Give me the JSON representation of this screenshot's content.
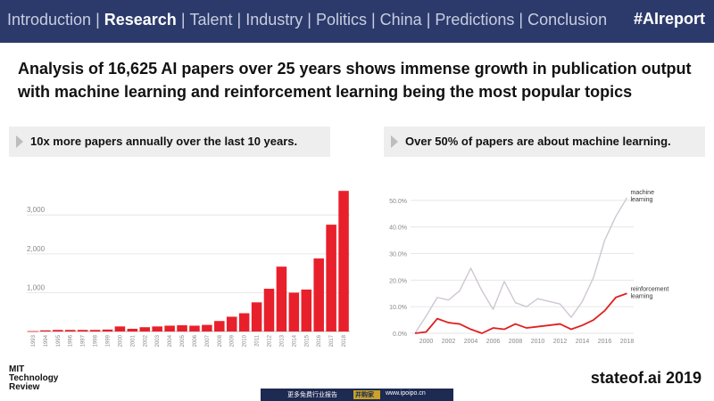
{
  "nav": {
    "items": [
      {
        "label": "Introduction",
        "active": false
      },
      {
        "label": "Research",
        "active": true
      },
      {
        "label": "Talent",
        "active": false
      },
      {
        "label": "Industry",
        "active": false
      },
      {
        "label": "Politics",
        "active": false
      },
      {
        "label": "China",
        "active": false
      },
      {
        "label": "Predictions",
        "active": false
      },
      {
        "label": "Conclusion",
        "active": false
      }
    ],
    "separator": "|",
    "hashtag": "#AIreport"
  },
  "headline": "Analysis of 16,625 AI papers over 25 years shows immense growth in publication output with machine learning and reinforcement learning being the most popular topics",
  "left_section": {
    "subtitle": "10x more papers annually over the last 10 years."
  },
  "right_section": {
    "subtitle": "Over 50% of papers are about machine learning."
  },
  "footer": {
    "logo_lines": [
      "MIT",
      "Technology",
      "Review"
    ],
    "site": "stateof.ai 2019",
    "banner_text": "更多免费行业报告",
    "banner_button": "并购家",
    "banner_url": "www.ipoipo.cn"
  },
  "colors": {
    "nav_bg": "#2c3a6b",
    "bar": "#e8202b",
    "ml_line": "#cfc6d2",
    "rl_line": "#e02020",
    "banner_bg": "#1d2a52"
  },
  "chart_data": [
    {
      "type": "bar",
      "categories": [
        "1993",
        "1994",
        "1995",
        "1996",
        "1997",
        "1998",
        "1999",
        "2000",
        "2001",
        "2002",
        "2003",
        "2004",
        "2005",
        "2006",
        "2007",
        "2008",
        "2009",
        "2010",
        "2011",
        "2012",
        "2013",
        "2014",
        "2015",
        "2016",
        "2017",
        "2018"
      ],
      "values": [
        10,
        30,
        40,
        40,
        40,
        40,
        50,
        130,
        70,
        110,
        130,
        150,
        160,
        150,
        170,
        270,
        380,
        470,
        750,
        1100,
        1670,
        1000,
        1080,
        1880,
        2750,
        3620
      ],
      "ytick_labels": [
        "1,000",
        "2,000",
        "3,000"
      ],
      "ylim": [
        0,
        3900
      ],
      "grid": true
    },
    {
      "type": "line",
      "x": [
        1999,
        2000,
        2001,
        2002,
        2003,
        2004,
        2005,
        2006,
        2007,
        2008,
        2009,
        2010,
        2011,
        2012,
        2013,
        2014,
        2015,
        2016,
        2017,
        2018
      ],
      "series": [
        {
          "name": "machine\nlearning",
          "values": [
            0.0,
            6.5,
            13.5,
            12.5,
            16.0,
            24.5,
            16.0,
            9.0,
            19.5,
            11.5,
            10.0,
            13.0,
            12.0,
            11.0,
            6.0,
            12.0,
            21.0,
            35.0,
            44.0,
            51.0
          ]
        },
        {
          "name": "reinforcement\nlearning",
          "values": [
            0.0,
            0.5,
            5.5,
            4.0,
            3.5,
            1.5,
            0.0,
            2.0,
            1.5,
            3.5,
            2.0,
            2.5,
            3.0,
            3.5,
            1.5,
            3.0,
            5.0,
            8.5,
            13.5,
            15.0
          ]
        }
      ],
      "xtick_labels": [
        "2000",
        "2002",
        "2004",
        "2006",
        "2008",
        "2010",
        "2012",
        "2014",
        "2016",
        "2018"
      ],
      "ytick_labels": [
        "0.0%",
        "10.0%",
        "20.0%",
        "30.0%",
        "40.0%",
        "50.0%"
      ],
      "ylim": [
        0,
        55
      ],
      "xlim": [
        1998.6,
        2018.6
      ],
      "grid": true
    }
  ]
}
